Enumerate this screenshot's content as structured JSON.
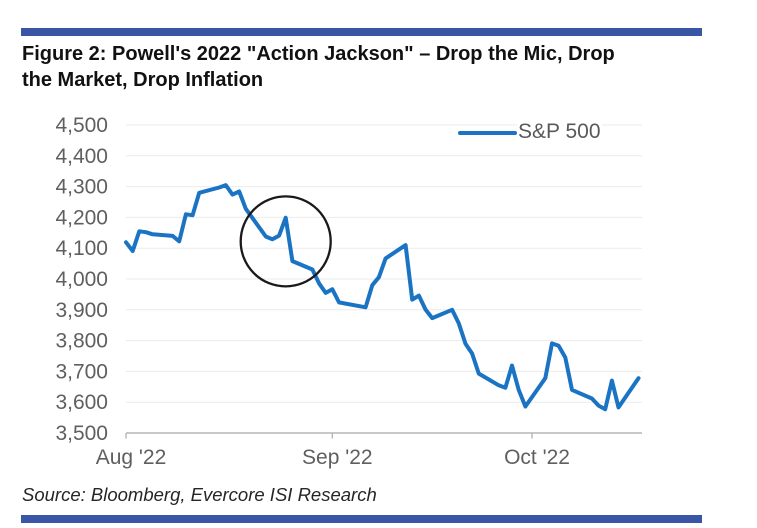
{
  "figure": {
    "title_lines": [
      "Figure 2: Powell's 2022 \"Action Jackson\" – Drop the Mic, Drop",
      "the Market, Drop Inflation"
    ],
    "source_text": "Source: Bloomberg, Evercore ISI Research",
    "rule_color": "#3956A6"
  },
  "legend": {
    "label": "S&P 500"
  },
  "chart_data": {
    "type": "line",
    "title": "Powell's 2022 \"Action Jackson\" – Drop the Mic, Drop the Market, Drop Inflation",
    "xlabel": "",
    "ylabel": "",
    "ylim": [
      3500,
      4500
    ],
    "grid": "horizontal",
    "legend_position": "top-center",
    "y_ticks": [
      {
        "label": "4,500",
        "value": 4500
      },
      {
        "label": "4,400",
        "value": 4400
      },
      {
        "label": "4,300",
        "value": 4300
      },
      {
        "label": "4,200",
        "value": 4200
      },
      {
        "label": "4,100",
        "value": 4100
      },
      {
        "label": "4,000",
        "value": 4000
      },
      {
        "label": "3,900",
        "value": 3900
      },
      {
        "label": "3,800",
        "value": 3800
      },
      {
        "label": "3,700",
        "value": 3700
      },
      {
        "label": "3,600",
        "value": 3600
      },
      {
        "label": "3,500",
        "value": 3500
      }
    ],
    "x_ticks": [
      {
        "label": "Aug '22",
        "day": 0
      },
      {
        "label": "Sep '22",
        "day": 31
      },
      {
        "label": "Oct '22",
        "day": 61
      }
    ],
    "series": [
      {
        "name": "S&P 500",
        "color": "#1B73C4",
        "points": [
          {
            "d": "Aug 1",
            "t": 0,
            "v": 4119
          },
          {
            "d": "Aug 2",
            "t": 1,
            "v": 4091
          },
          {
            "d": "Aug 3",
            "t": 2,
            "v": 4155
          },
          {
            "d": "Aug 4",
            "t": 3,
            "v": 4152
          },
          {
            "d": "Aug 5",
            "t": 4,
            "v": 4145
          },
          {
            "d": "Aug 8",
            "t": 7,
            "v": 4140
          },
          {
            "d": "Aug 9",
            "t": 8,
            "v": 4122
          },
          {
            "d": "Aug 10",
            "t": 9,
            "v": 4210
          },
          {
            "d": "Aug 11",
            "t": 10,
            "v": 4207
          },
          {
            "d": "Aug 12",
            "t": 11,
            "v": 4280
          },
          {
            "d": "Aug 15",
            "t": 14,
            "v": 4297
          },
          {
            "d": "Aug 16",
            "t": 15,
            "v": 4305
          },
          {
            "d": "Aug 17",
            "t": 16,
            "v": 4274
          },
          {
            "d": "Aug 18",
            "t": 17,
            "v": 4284
          },
          {
            "d": "Aug 19",
            "t": 18,
            "v": 4228
          },
          {
            "d": "Aug 22",
            "t": 21,
            "v": 4138
          },
          {
            "d": "Aug 23",
            "t": 22,
            "v": 4129
          },
          {
            "d": "Aug 24",
            "t": 23,
            "v": 4141
          },
          {
            "d": "Aug 25",
            "t": 24,
            "v": 4199
          },
          {
            "d": "Aug 26",
            "t": 25,
            "v": 4058
          },
          {
            "d": "Aug 29",
            "t": 28,
            "v": 4031
          },
          {
            "d": "Aug 30",
            "t": 29,
            "v": 3986
          },
          {
            "d": "Aug 31",
            "t": 30,
            "v": 3955
          },
          {
            "d": "Sep 1",
            "t": 31,
            "v": 3967
          },
          {
            "d": "Sep 2",
            "t": 32,
            "v": 3924
          },
          {
            "d": "Sep 6",
            "t": 36,
            "v": 3908
          },
          {
            "d": "Sep 7",
            "t": 37,
            "v": 3980
          },
          {
            "d": "Sep 8",
            "t": 38,
            "v": 4006
          },
          {
            "d": "Sep 9",
            "t": 39,
            "v": 4067
          },
          {
            "d": "Sep 12",
            "t": 42,
            "v": 4110
          },
          {
            "d": "Sep 13",
            "t": 43,
            "v": 3933
          },
          {
            "d": "Sep 14",
            "t": 44,
            "v": 3946
          },
          {
            "d": "Sep 15",
            "t": 45,
            "v": 3901
          },
          {
            "d": "Sep 16",
            "t": 46,
            "v": 3873
          },
          {
            "d": "Sep 19",
            "t": 49,
            "v": 3900
          },
          {
            "d": "Sep 20",
            "t": 50,
            "v": 3856
          },
          {
            "d": "Sep 21",
            "t": 51,
            "v": 3790
          },
          {
            "d": "Sep 22",
            "t": 52,
            "v": 3758
          },
          {
            "d": "Sep 23",
            "t": 53,
            "v": 3693
          },
          {
            "d": "Sep 26",
            "t": 56,
            "v": 3655
          },
          {
            "d": "Sep 27",
            "t": 57,
            "v": 3647
          },
          {
            "d": "Sep 28",
            "t": 58,
            "v": 3719
          },
          {
            "d": "Sep 29",
            "t": 59,
            "v": 3640
          },
          {
            "d": "Sep 30",
            "t": 60,
            "v": 3586
          },
          {
            "d": "Oct 3",
            "t": 63,
            "v": 3678
          },
          {
            "d": "Oct 4",
            "t": 64,
            "v": 3791
          },
          {
            "d": "Oct 5",
            "t": 65,
            "v": 3783
          },
          {
            "d": "Oct 6",
            "t": 66,
            "v": 3745
          },
          {
            "d": "Oct 7",
            "t": 67,
            "v": 3640
          },
          {
            "d": "Oct 10",
            "t": 70,
            "v": 3612
          },
          {
            "d": "Oct 11",
            "t": 71,
            "v": 3589
          },
          {
            "d": "Oct 12",
            "t": 72,
            "v": 3577
          },
          {
            "d": "Oct 13",
            "t": 73,
            "v": 3670
          },
          {
            "d": "Oct 14",
            "t": 74,
            "v": 3583
          },
          {
            "d": "Oct 17",
            "t": 77,
            "v": 3678
          }
        ]
      }
    ],
    "annotation_circle": {
      "center_day": 24,
      "center_value": 4122,
      "radius_px": 45,
      "color": "#1A1A1A"
    },
    "colors": {
      "grid": "#EBEBEB",
      "axis": "#B5B5B5",
      "tick_text": "#5F5F5F",
      "legend_text": "#58595B",
      "title_text": "#111111",
      "source_text": "#262626"
    }
  }
}
